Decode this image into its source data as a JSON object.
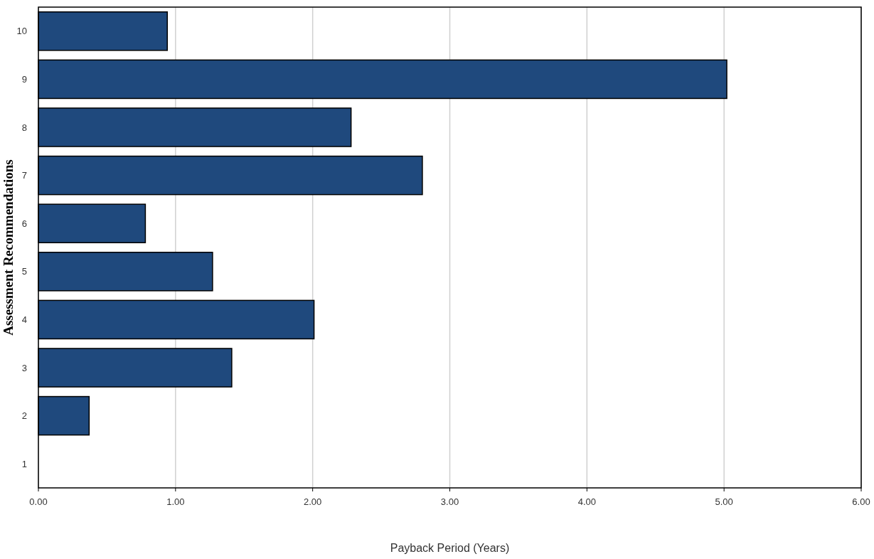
{
  "chart_data": {
    "type": "bar",
    "orientation": "horizontal",
    "xlabel": "Payback Period (Years)",
    "ylabel": "Assessment Recommendations",
    "categories": [
      "10",
      "9",
      "8",
      "7",
      "6",
      "5",
      "4",
      "3",
      "2",
      "1"
    ],
    "values": [
      0.94,
      5.02,
      2.28,
      2.8,
      0.78,
      1.27,
      2.01,
      1.41,
      0.37,
      0
    ],
    "color": "#1f497d",
    "xlim": [
      0,
      6
    ],
    "xticks": [
      {
        "value": 0,
        "label": "0.00"
      },
      {
        "value": 1,
        "label": "1.00"
      },
      {
        "value": 2,
        "label": "2.00"
      },
      {
        "value": 3,
        "label": "3.00"
      },
      {
        "value": 4,
        "label": "4.00"
      },
      {
        "value": 5,
        "label": "5.00"
      },
      {
        "value": 6,
        "label": "6.00"
      }
    ],
    "grid": "x"
  }
}
